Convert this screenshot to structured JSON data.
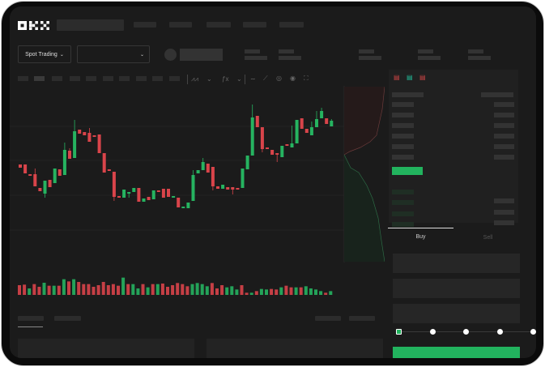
{
  "brand": {
    "logo": "OKX"
  },
  "toolbar": {
    "mode_label": "Spot Trading",
    "mode_icon": "chevron-down-icon",
    "pair_icon": "chevron-down-icon"
  },
  "trade": {
    "tabs": [
      {
        "label": "Buy",
        "active": true
      },
      {
        "label": "Sell",
        "active": false
      }
    ],
    "slider_value": 0,
    "slider_steps": 5
  },
  "colors": {
    "up": "#26b360",
    "down": "#d9444a",
    "background": "#1b1b1b",
    "accent": "#22b35e"
  },
  "chart_data": {
    "type": "candlestick",
    "candles": [
      [
        97,
        93,
        97,
        93
      ],
      [
        97,
        86,
        97,
        86
      ],
      [
        85,
        83,
        85,
        83
      ],
      [
        85,
        70,
        92,
        70
      ],
      [
        68,
        64,
        68,
        64
      ],
      [
        61,
        77,
        77,
        56
      ],
      [
        78,
        69,
        78,
        69
      ],
      [
        74,
        92,
        92,
        74
      ],
      [
        91,
        83,
        91,
        83
      ],
      [
        84,
        115,
        124,
        84
      ],
      [
        114,
        104,
        117,
        104
      ],
      [
        105,
        138,
        152,
        105
      ],
      [
        140,
        135,
        140,
        135
      ],
      [
        137,
        133,
        137,
        133
      ],
      [
        136,
        125,
        142,
        125
      ],
      [
        133,
        131,
        133,
        131
      ],
      [
        134,
        111,
        134,
        111
      ],
      [
        111,
        87,
        111,
        87
      ],
      [
        91,
        89,
        91,
        89
      ],
      [
        88,
        57,
        88,
        52
      ],
      [
        58,
        56,
        58,
        56
      ],
      [
        56,
        66,
        66,
        56
      ],
      [
        61,
        63,
        63,
        56
      ],
      [
        63,
        68,
        68,
        63
      ],
      [
        68,
        51,
        68,
        51
      ],
      [
        51,
        55,
        55,
        51
      ],
      [
        57,
        53,
        57,
        53
      ],
      [
        54,
        65,
        65,
        54
      ],
      [
        65,
        63,
        65,
        63
      ],
      [
        67,
        56,
        67,
        56
      ],
      [
        67,
        57,
        67,
        57
      ],
      [
        58,
        58,
        58,
        58
      ],
      [
        56,
        44,
        56,
        44
      ],
      [
        45,
        45,
        45,
        45
      ],
      [
        43,
        50,
        50,
        43
      ],
      [
        52,
        84,
        90,
        52
      ],
      [
        86,
        90,
        90,
        86
      ],
      [
        90,
        100,
        105,
        90
      ],
      [
        98,
        87,
        98,
        87
      ],
      [
        94,
        70,
        94,
        65
      ],
      [
        70,
        67,
        70,
        67
      ],
      [
        67,
        72,
        72,
        67
      ],
      [
        69,
        66,
        69,
        66
      ],
      [
        69,
        66,
        69,
        60
      ],
      [
        68,
        67,
        68,
        67
      ],
      [
        68,
        92,
        92,
        68
      ],
      [
        91,
        108,
        108,
        91
      ],
      [
        108,
        155,
        171,
        108
      ],
      [
        157,
        143,
        157,
        143
      ],
      [
        143,
        116,
        143,
        112
      ],
      [
        118,
        116,
        118,
        116
      ],
      [
        115,
        109,
        115,
        109
      ],
      [
        111,
        109,
        111,
        100
      ],
      [
        106,
        120,
        120,
        106
      ],
      [
        122,
        120,
        122,
        120
      ],
      [
        118,
        123,
        145,
        118
      ],
      [
        123,
        152,
        152,
        123
      ],
      [
        154,
        141,
        154,
        141
      ],
      [
        141,
        136,
        141,
        136
      ],
      [
        133,
        143,
        150,
        133
      ],
      [
        143,
        153,
        163,
        143
      ],
      [
        154,
        163,
        167,
        154
      ],
      [
        154,
        147,
        154,
        147
      ],
      [
        144,
        151,
        153,
        144
      ]
    ],
    "volume": [
      {
        "v": 36,
        "up": false
      },
      {
        "v": 38,
        "up": false
      },
      {
        "v": 24,
        "up": true
      },
      {
        "v": 40,
        "up": false
      },
      {
        "v": 30,
        "up": false
      },
      {
        "v": 45,
        "up": true
      },
      {
        "v": 34,
        "up": false
      },
      {
        "v": 34,
        "up": true
      },
      {
        "v": 34,
        "up": false
      },
      {
        "v": 58,
        "up": true
      },
      {
        "v": 50,
        "up": false
      },
      {
        "v": 58,
        "up": true
      },
      {
        "v": 48,
        "up": false
      },
      {
        "v": 40,
        "up": false
      },
      {
        "v": 40,
        "up": false
      },
      {
        "v": 30,
        "up": false
      },
      {
        "v": 36,
        "up": false
      },
      {
        "v": 48,
        "up": false
      },
      {
        "v": 36,
        "up": false
      },
      {
        "v": 40,
        "up": false
      },
      {
        "v": 34,
        "up": false
      },
      {
        "v": 64,
        "up": true
      },
      {
        "v": 40,
        "up": false
      },
      {
        "v": 40,
        "up": true
      },
      {
        "v": 24,
        "up": true
      },
      {
        "v": 40,
        "up": false
      },
      {
        "v": 28,
        "up": true
      },
      {
        "v": 40,
        "up": false
      },
      {
        "v": 40,
        "up": true
      },
      {
        "v": 42,
        "up": false
      },
      {
        "v": 30,
        "up": false
      },
      {
        "v": 36,
        "up": false
      },
      {
        "v": 44,
        "up": false
      },
      {
        "v": 40,
        "up": false
      },
      {
        "v": 32,
        "up": false
      },
      {
        "v": 40,
        "up": true
      },
      {
        "v": 44,
        "up": true
      },
      {
        "v": 40,
        "up": true
      },
      {
        "v": 32,
        "up": true
      },
      {
        "v": 44,
        "up": false
      },
      {
        "v": 24,
        "up": false
      },
      {
        "v": 36,
        "up": false
      },
      {
        "v": 28,
        "up": true
      },
      {
        "v": 32,
        "up": true
      },
      {
        "v": 20,
        "up": true
      },
      {
        "v": 36,
        "up": false
      },
      {
        "v": 8,
        "up": false
      },
      {
        "v": 8,
        "up": true
      },
      {
        "v": 14,
        "up": false
      },
      {
        "v": 22,
        "up": true
      },
      {
        "v": 20,
        "up": true
      },
      {
        "v": 22,
        "up": false
      },
      {
        "v": 20,
        "up": false
      },
      {
        "v": 28,
        "up": true
      },
      {
        "v": 34,
        "up": false
      },
      {
        "v": 28,
        "up": false
      },
      {
        "v": 28,
        "up": true
      },
      {
        "v": 28,
        "up": false
      },
      {
        "v": 32,
        "up": true
      },
      {
        "v": 24,
        "up": true
      },
      {
        "v": 20,
        "up": true
      },
      {
        "v": 14,
        "up": true
      },
      {
        "v": 8,
        "up": false
      },
      {
        "v": 14,
        "up": true
      }
    ]
  }
}
